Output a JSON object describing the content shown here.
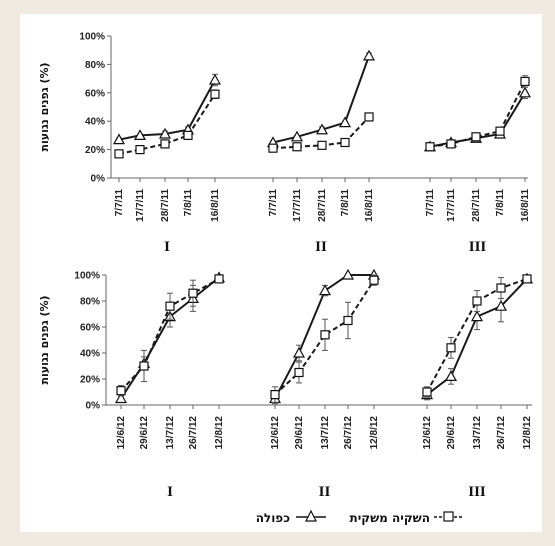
{
  "chart_data": [
    {
      "type": "line",
      "ylabel": "גפנים נגועות (%)",
      "ylim": [
        0,
        100
      ],
      "yticks": [
        "0%",
        "20%",
        "40%",
        "60%",
        "80%",
        "100%"
      ],
      "groups": [
        {
          "label": "I",
          "x": [
            "7/7/11",
            "17/7/11",
            "28/7/11",
            "7/8/11",
            "16/8/11"
          ],
          "series": [
            {
              "key": "double",
              "values": [
                27,
                30,
                31,
                34,
                69
              ],
              "errors": [
                1,
                1,
                2,
                2,
                4
              ]
            },
            {
              "key": "irrigation",
              "values": [
                17,
                20,
                24,
                30,
                59
              ],
              "errors": [
                1,
                1,
                2,
                2,
                3
              ]
            }
          ]
        },
        {
          "label": "II",
          "x": [
            "7/7/11",
            "17/7/11",
            "28/7/11",
            "7/8/11",
            "16/8/11"
          ],
          "series": [
            {
              "key": "double",
              "values": [
                25,
                29,
                34,
                39,
                86
              ],
              "errors": [
                1,
                1,
                2,
                1,
                2
              ]
            },
            {
              "key": "irrigation",
              "values": [
                21,
                22,
                23,
                25,
                43
              ],
              "errors": [
                1,
                1,
                1,
                1,
                2
              ]
            }
          ]
        },
        {
          "label": "III",
          "x": [
            "7/7/11",
            "17/7/11",
            "28/7/11",
            "7/8/11",
            "16/8/11"
          ],
          "series": [
            {
              "key": "double",
              "values": [
                22,
                25,
                28,
                31,
                60
              ],
              "errors": [
                1,
                1,
                1,
                2,
                4
              ]
            },
            {
              "key": "irrigation",
              "values": [
                22,
                24,
                29,
                33,
                68
              ],
              "errors": [
                1,
                1,
                1,
                2,
                4
              ]
            }
          ]
        }
      ]
    },
    {
      "type": "line",
      "ylabel": "גפנים נגועות (%)",
      "ylim": [
        0,
        100
      ],
      "yticks": [
        "0%",
        "20%",
        "40%",
        "60%",
        "80%",
        "100%"
      ],
      "groups": [
        {
          "label": "I",
          "x": [
            "12/6/12",
            "29/6/12",
            "13/7/12",
            "26/7/12",
            "12/8/12"
          ],
          "series": [
            {
              "key": "double",
              "values": [
                5,
                32,
                68,
                82,
                98
              ],
              "errors": [
                3,
                5,
                8,
                10,
                2
              ]
            },
            {
              "key": "irrigation",
              "values": [
                11,
                30,
                76,
                86,
                97
              ],
              "errors": [
                4,
                12,
                10,
                10,
                3
              ]
            }
          ]
        },
        {
          "label": "II",
          "x": [
            "12/6/12",
            "29/6/12",
            "13/7/12",
            "26/7/12",
            "12/8/12"
          ],
          "series": [
            {
              "key": "double",
              "values": [
                5,
                40,
                88,
                100,
                100
              ],
              "errors": [
                4,
                6,
                4,
                0,
                0
              ]
            },
            {
              "key": "irrigation",
              "values": [
                8,
                25,
                54,
                65,
                96
              ],
              "errors": [
                6,
                8,
                12,
                14,
                4
              ]
            }
          ]
        },
        {
          "label": "III",
          "x": [
            "12/6/12",
            "29/6/12",
            "13/7/12",
            "26/7/12",
            "12/8/12"
          ],
          "series": [
            {
              "key": "double",
              "values": [
                8,
                22,
                68,
                76,
                97
              ],
              "errors": [
                4,
                6,
                10,
                12,
                3
              ]
            },
            {
              "key": "irrigation",
              "values": [
                10,
                44,
                80,
                90,
                97
              ],
              "errors": [
                4,
                8,
                8,
                8,
                3
              ]
            }
          ]
        }
      ]
    }
  ],
  "legend": {
    "irrigation": "השקיה משקית",
    "double": "כפולה"
  }
}
